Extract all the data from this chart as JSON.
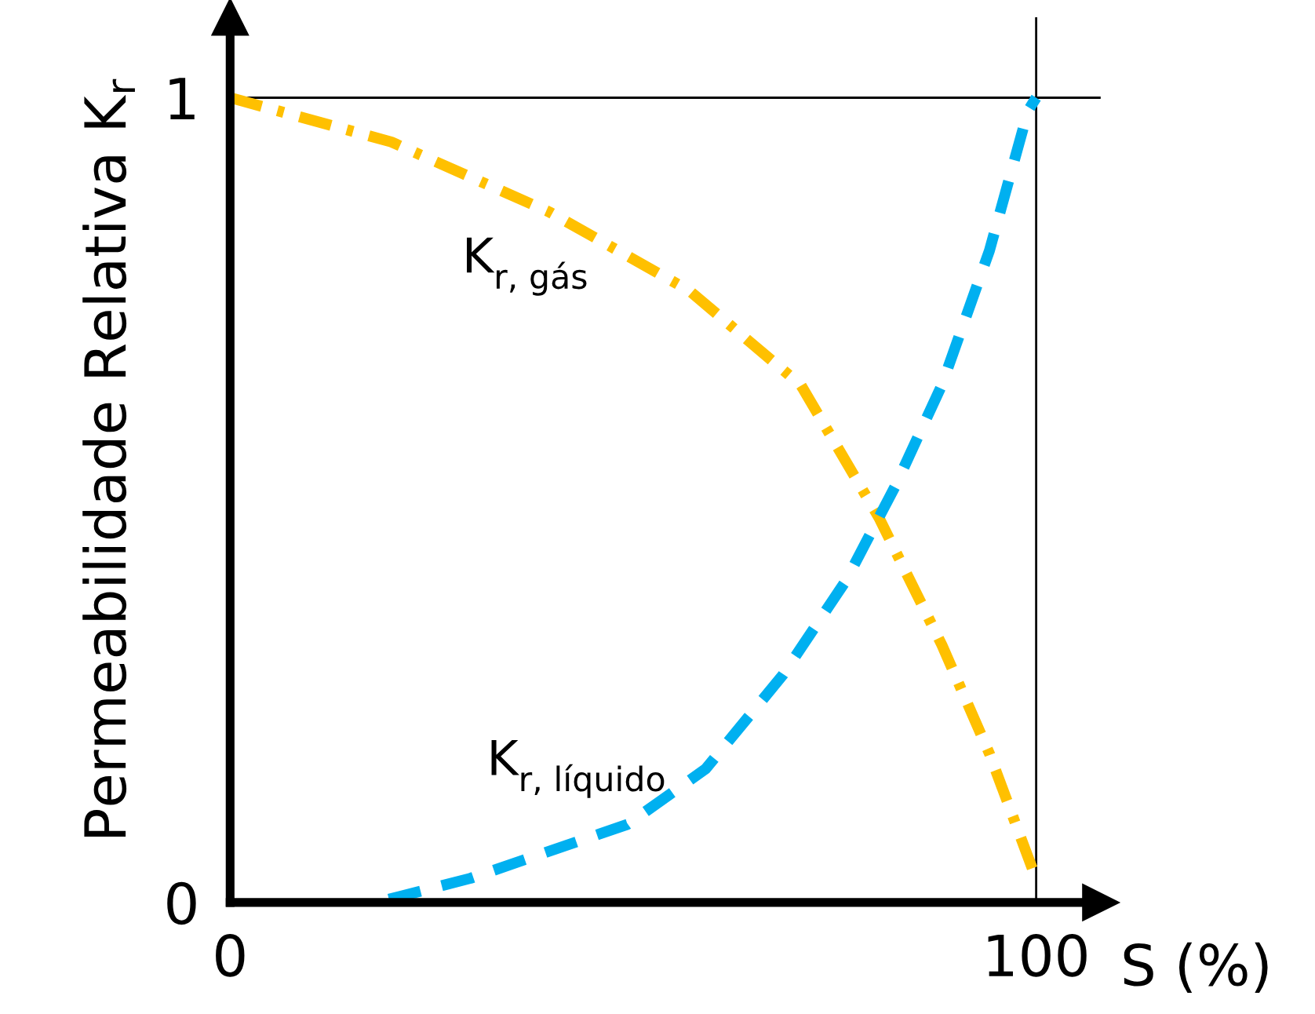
{
  "chart_data": {
    "type": "line",
    "ylabel": "Permeabilidade Relativa K$_{r}$",
    "xlabel": "S (%)",
    "xlim": [
      0,
      108
    ],
    "ylim": [
      0,
      1.1
    ],
    "xticks": [
      0,
      100
    ],
    "yticks": [
      0,
      1
    ],
    "grid": false,
    "legend": false,
    "marker": "none",
    "ref_lines": [
      {
        "axis": "y",
        "value": 1,
        "color": "#000000"
      },
      {
        "axis": "x",
        "value": 100,
        "color": "#000000"
      }
    ],
    "series": [
      {
        "name": "K$_{r, gás}$",
        "color": "#ffc000",
        "line_style": "dashdot",
        "x": [
          0,
          20,
          39.6,
          57,
          70.8,
          80.5,
          88.3,
          94.2,
          99.6
        ],
        "values": [
          1.0,
          0.945,
          0.858,
          0.76,
          0.643,
          0.478,
          0.32,
          0.185,
          0.04
        ]
      },
      {
        "name": "K$_{r, líquido}$",
        "color": "#00b0f0",
        "line_style": "dashed",
        "x": [
          19.7,
          29.8,
          49.3,
          59,
          68.6,
          76.4,
          82.5,
          88.3,
          94.2,
          99,
          100
        ],
        "values": [
          0.004,
          0.03,
          0.097,
          0.166,
          0.283,
          0.4,
          0.517,
          0.643,
          0.81,
          0.984,
          1.0
        ]
      }
    ]
  }
}
